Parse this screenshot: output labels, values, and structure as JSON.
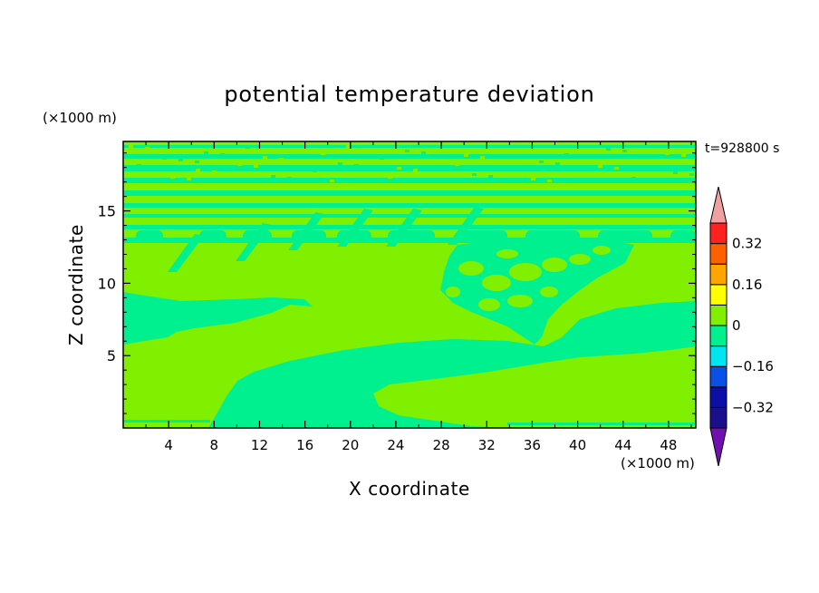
{
  "chart_data": {
    "type": "heatmap",
    "title": "potential temperature deviation",
    "xlabel": "X coordinate",
    "ylabel": "Z coordinate",
    "x_units": "(×1000 m)",
    "y_units": "(×1000 m)",
    "time_label": "t=928800 s",
    "xlim": [
      0,
      50.4
    ],
    "ylim": [
      0,
      19.8
    ],
    "xticks": [
      "4",
      "8",
      "12",
      "16",
      "20",
      "24",
      "28",
      "32",
      "36",
      "40",
      "44",
      "48"
    ],
    "yticks": [
      "5",
      "10",
      "15"
    ],
    "colorbar": {
      "levels": [
        -0.4,
        -0.32,
        -0.24,
        -0.16,
        -0.08,
        0,
        0.08,
        0.16,
        0.24,
        0.32,
        0.4
      ],
      "tick_labels": [
        "0.32",
        "0.16",
        "0",
        "−0.16",
        "−0.32"
      ],
      "colors": [
        "#1a0f8c",
        "#0b0fa8",
        "#0a50e6",
        "#00e6f0",
        "#00f090",
        "#80f000",
        "#ffff00",
        "#ffa500",
        "#ff6000",
        "#ff2020"
      ],
      "under_color": "#7010b0",
      "over_color": "#f0a0a0"
    },
    "field": {
      "background_color": "#80f000",
      "anomaly_color": "#00f090",
      "background_value": "0 to 0.08",
      "anomaly_value": "-0.08 to 0",
      "description_regions": [
        "lower-left warm layer 0-6 km west of x=9",
        "cold wedge rising from x=9 to x=50 along 3-7 km",
        "warm base near surface from x=22 eastward",
        "breaking wave region x=28-44, z=8-14",
        "alternating horizontal bands above 11 km"
      ]
    }
  }
}
